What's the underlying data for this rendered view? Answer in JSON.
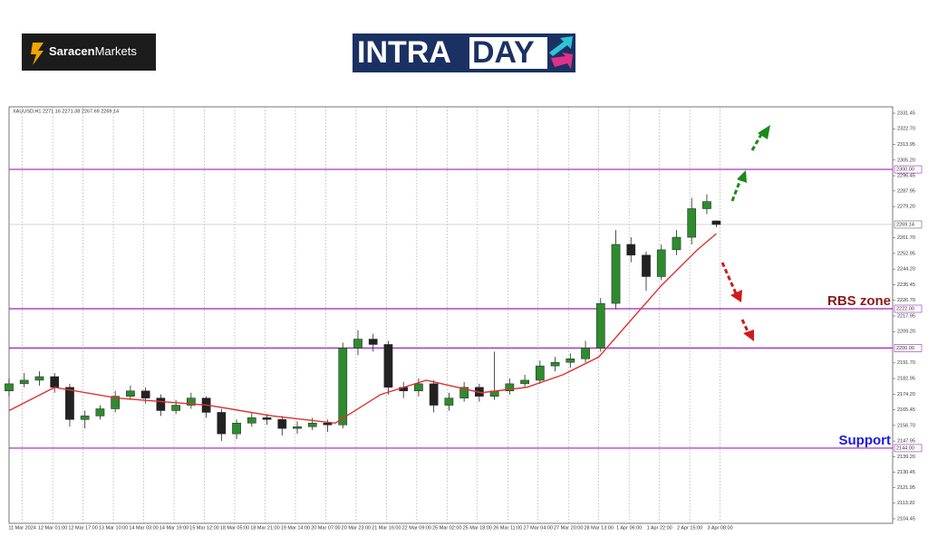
{
  "logos": {
    "brand_a": "Saracen",
    "brand_b": "Markets",
    "intra": "INTRA",
    "day": "DAY"
  },
  "chart_data": {
    "type": "candlestick",
    "header": "XAUUSD,H1  2271.16 2271.38 2267.69 2269.14",
    "up_color": "#2e8b2e",
    "down_color": "#222222",
    "x": [
      0,
      8,
      16,
      24,
      32,
      40,
      48,
      56,
      64,
      72,
      80,
      88,
      96,
      104,
      112,
      120,
      128,
      136,
      144,
      152,
      160,
      168,
      176,
      184,
      192,
      200,
      208,
      216,
      224,
      232,
      240,
      248,
      256,
      264,
      272,
      280,
      288,
      296,
      304,
      312,
      320,
      328,
      336,
      344,
      352,
      360,
      368,
      373
    ],
    "open": [
      2176,
      2180,
      2182,
      2184,
      2178,
      2160,
      2162,
      2166,
      2173,
      2176,
      2172,
      2165,
      2168,
      2172,
      2164,
      2152,
      2158,
      2161,
      2160,
      2155,
      2156,
      2158,
      2157,
      2200,
      2205,
      2202,
      2178,
      2176,
      2180,
      2168,
      2172,
      2178,
      2173,
      2176,
      2180,
      2182,
      2190,
      2192,
      2194,
      2200,
      2225,
      2258,
      2252,
      2240,
      2255,
      2262,
      2278,
      2271.16
    ],
    "high": [
      2183,
      2186,
      2187,
      2186,
      2180,
      2165,
      2168,
      2176,
      2179,
      2178,
      2174,
      2171,
      2175,
      2173,
      2166,
      2160,
      2164,
      2163,
      2162,
      2159,
      2161,
      2160,
      2203,
      2210,
      2208,
      2204,
      2181,
      2183,
      2182,
      2175,
      2181,
      2180,
      2198,
      2183,
      2185,
      2193,
      2195,
      2197,
      2204,
      2228,
      2266,
      2262,
      2254,
      2258,
      2266,
      2284,
      2286,
      2271.38
    ],
    "low": [
      2173,
      2178,
      2179,
      2175,
      2156,
      2155,
      2160,
      2164,
      2171,
      2169,
      2162,
      2163,
      2166,
      2161,
      2148,
      2149,
      2156,
      2157,
      2151,
      2152,
      2154,
      2153,
      2155,
      2196,
      2198,
      2174,
      2172,
      2173,
      2164,
      2165,
      2170,
      2170,
      2171,
      2174,
      2178,
      2180,
      2187,
      2189,
      2192,
      2198,
      2222,
      2248,
      2232,
      2238,
      2252,
      2258,
      2275,
      2267.69
    ],
    "close": [
      2180,
      2182,
      2184,
      2178,
      2160,
      2162,
      2166,
      2173,
      2176,
      2172,
      2165,
      2168,
      2172,
      2164,
      2152,
      2158,
      2161,
      2160,
      2155,
      2156,
      2158,
      2157,
      2200,
      2205,
      2202,
      2178,
      2176,
      2180,
      2168,
      2172,
      2178,
      2173,
      2176,
      2180,
      2182,
      2190,
      2192,
      2194,
      2200,
      2225,
      2258,
      2252,
      2240,
      2255,
      2262,
      2278,
      2282,
      2269.14
    ],
    "ma": {
      "color": "#e03030",
      "x": [
        0,
        24,
        57,
        105,
        139,
        172,
        196,
        220,
        249,
        273,
        292,
        311,
        325,
        344,
        363,
        373
      ],
      "values": [
        2165,
        2178,
        2172,
        2168,
        2162,
        2158,
        2174,
        2182,
        2175,
        2178,
        2185,
        2195,
        2212,
        2235,
        2255,
        2264
      ]
    },
    "hline_color": "#a020c0",
    "hlines": [
      {
        "value": 2300,
        "label": "2300.00"
      },
      {
        "value": 2222,
        "label": "2222.00"
      },
      {
        "value": 2200,
        "label": "2200.00"
      },
      {
        "value": 2144,
        "label": "2144.00"
      }
    ],
    "last_price": 2269.14,
    "annotations": [
      {
        "text": "RBS zone",
        "value": 2226,
        "color": "#8b1a1a"
      },
      {
        "text": "Support",
        "value": 2148,
        "color": "#1a1ae0"
      }
    ],
    "xlim": [
      0,
      466
    ],
    "ylim": [
      2101.9,
      2335.0
    ],
    "xticks": [
      {
        "value": 7,
        "label": "11 Mar 2024"
      },
      {
        "value": 23,
        "label": "12 Mar 01:00"
      },
      {
        "value": 39,
        "label": "12 Mar 17:00"
      },
      {
        "value": 55,
        "label": "13 Mar 10:00"
      },
      {
        "value": 71,
        "label": "14 Mar 03:00"
      },
      {
        "value": 87,
        "label": "14 Mar 19:00"
      },
      {
        "value": 103,
        "label": "15 Mar 12:00"
      },
      {
        "value": 119,
        "label": "18 Mar 05:00"
      },
      {
        "value": 135,
        "label": "18 Mar 21:00"
      },
      {
        "value": 151,
        "label": "19 Mar 14:00"
      },
      {
        "value": 167,
        "label": "20 Mar 07:00"
      },
      {
        "value": 183,
        "label": "20 Mar 23:00"
      },
      {
        "value": 199,
        "label": "21 Mar 16:00"
      },
      {
        "value": 215,
        "label": "22 Mar 09:00"
      },
      {
        "value": 231,
        "label": "25 Mar 02:00"
      },
      {
        "value": 247,
        "label": "25 Mar 18:00"
      },
      {
        "value": 263,
        "label": "26 Mar 11:00"
      },
      {
        "value": 279,
        "label": "27 Mar 04:00"
      },
      {
        "value": 295,
        "label": "27 Mar 20:00"
      },
      {
        "value": 311,
        "label": "28 Mar 13:00"
      },
      {
        "value": 327,
        "label": "1 Apr 06:00"
      },
      {
        "value": 343,
        "label": "1 Apr 22:00"
      },
      {
        "value": 359,
        "label": "2 Apr 15:00"
      },
      {
        "value": 375,
        "label": "3 Apr 08:00"
      }
    ],
    "yticks": [
      {
        "value": 2331.45,
        "label": "2331.45"
      },
      {
        "value": 2322.7,
        "label": "2322.70"
      },
      {
        "value": 2313.95,
        "label": "2313.95"
      },
      {
        "value": 2305.2,
        "label": "2305.20"
      },
      {
        "value": 2296.45,
        "label": "2296.45"
      },
      {
        "value": 2287.95,
        "label": "2287.95"
      },
      {
        "value": 2279.2,
        "label": "2279.20"
      },
      {
        "value": 2261.7,
        "label": "2261.70"
      },
      {
        "value": 2252.95,
        "label": "2252.95"
      },
      {
        "value": 2244.2,
        "label": "2244.20"
      },
      {
        "value": 2235.45,
        "label": "2235.45"
      },
      {
        "value": 2226.7,
        "label": "2226.70"
      },
      {
        "value": 2217.95,
        "label": "2217.95"
      },
      {
        "value": 2209.2,
        "label": "2209.20"
      },
      {
        "value": 2191.7,
        "label": "2191.70"
      },
      {
        "value": 2182.95,
        "label": "2182.95"
      },
      {
        "value": 2174.2,
        "label": "2174.20"
      },
      {
        "value": 2165.45,
        "label": "2165.45"
      },
      {
        "value": 2156.7,
        "label": "2156.70"
      },
      {
        "value": 2147.95,
        "label": "2147.95"
      },
      {
        "value": 2139.2,
        "label": "2139.20"
      },
      {
        "value": 2130.45,
        "label": "2130.45"
      },
      {
        "value": 2121.95,
        "label": "2121.95"
      },
      {
        "value": 2113.2,
        "label": "2113.20"
      },
      {
        "value": 2104.45,
        "label": "2104.45"
      }
    ]
  }
}
